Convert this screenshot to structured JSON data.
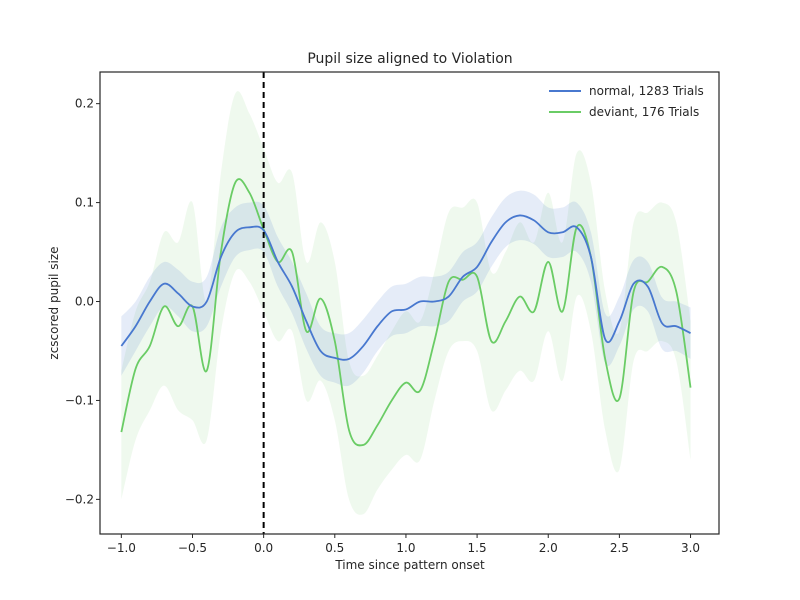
{
  "chart_data": {
    "type": "line",
    "title": "Pupil size aligned to Violation",
    "xlabel": "Time since pattern onset",
    "ylabel": "zcscored pupil size",
    "xlim": [
      -1.15,
      3.2
    ],
    "ylim": [
      -0.235,
      0.232
    ],
    "xticks": [
      -1.0,
      -0.5,
      0.0,
      0.5,
      1.0,
      1.5,
      2.0,
      2.5,
      3.0
    ],
    "xtick_labels": [
      "−1.0",
      "−0.5",
      "0.0",
      "0.5",
      "1.0",
      "1.5",
      "2.0",
      "2.5",
      "3.0"
    ],
    "yticks": [
      -0.2,
      -0.1,
      0.0,
      0.1,
      0.2
    ],
    "ytick_labels": [
      "−0.2",
      "−0.1",
      "0.0",
      "0.1",
      "0.2"
    ],
    "grid": false,
    "legend_position": "top-right",
    "vline": {
      "x": 0.0,
      "style": "dashed",
      "color": "#000000"
    },
    "x": [
      -1.0,
      -0.9,
      -0.8,
      -0.7,
      -0.6,
      -0.5,
      -0.4,
      -0.3,
      -0.2,
      -0.1,
      0.0,
      0.1,
      0.2,
      0.3,
      0.4,
      0.5,
      0.6,
      0.7,
      0.8,
      0.9,
      1.0,
      1.1,
      1.2,
      1.3,
      1.4,
      1.5,
      1.6,
      1.7,
      1.8,
      1.9,
      2.0,
      2.1,
      2.2,
      2.3,
      2.4,
      2.5,
      2.6,
      2.7,
      2.8,
      2.9,
      3.0
    ],
    "series": [
      {
        "name": "normal, 1283 Trials",
        "color": "#4878cf",
        "values": [
          -0.045,
          -0.025,
          0.0,
          0.018,
          0.008,
          -0.005,
          0.0,
          0.045,
          0.07,
          0.075,
          0.072,
          0.04,
          0.015,
          -0.02,
          -0.05,
          -0.057,
          -0.058,
          -0.045,
          -0.025,
          -0.01,
          -0.008,
          0.0,
          0.0,
          0.005,
          0.025,
          0.035,
          0.06,
          0.08,
          0.087,
          0.082,
          0.07,
          0.07,
          0.075,
          0.045,
          -0.038,
          -0.02,
          0.018,
          0.015,
          -0.022,
          -0.025,
          -0.032
        ],
        "ci_lower": [
          -0.075,
          -0.05,
          -0.025,
          -0.005,
          -0.015,
          -0.03,
          -0.025,
          0.015,
          0.045,
          0.052,
          0.05,
          0.015,
          -0.012,
          -0.048,
          -0.075,
          -0.082,
          -0.085,
          -0.072,
          -0.05,
          -0.035,
          -0.032,
          -0.025,
          -0.025,
          -0.02,
          0.0,
          0.01,
          0.035,
          0.055,
          0.062,
          0.058,
          0.045,
          0.045,
          0.05,
          0.02,
          -0.062,
          -0.045,
          -0.008,
          -0.01,
          -0.048,
          -0.05,
          -0.058
        ],
        "ci_upper": [
          -0.015,
          0.0,
          0.025,
          0.04,
          0.032,
          0.02,
          0.025,
          0.075,
          0.095,
          0.1,
          0.097,
          0.065,
          0.04,
          0.008,
          -0.025,
          -0.032,
          -0.032,
          -0.018,
          0.0,
          0.015,
          0.018,
          0.025,
          0.025,
          0.03,
          0.05,
          0.06,
          0.085,
          0.105,
          0.112,
          0.108,
          0.095,
          0.095,
          0.1,
          0.07,
          -0.012,
          0.005,
          0.042,
          0.04,
          0.004,
          0.0,
          -0.006
        ]
      },
      {
        "name": "deviant, 176 Trials",
        "color": "#6acc65",
        "values": [
          -0.132,
          -0.068,
          -0.045,
          -0.005,
          -0.025,
          -0.005,
          -0.07,
          0.05,
          0.12,
          0.11,
          0.073,
          0.04,
          0.05,
          -0.03,
          0.003,
          -0.04,
          -0.13,
          -0.145,
          -0.125,
          -0.1,
          -0.082,
          -0.09,
          -0.04,
          0.02,
          0.022,
          0.025,
          -0.04,
          -0.02,
          0.005,
          -0.01,
          0.04,
          -0.01,
          0.075,
          0.045,
          -0.058,
          -0.098,
          0.01,
          0.02,
          0.035,
          0.01,
          -0.087
        ],
        "ci_lower": [
          -0.2,
          -0.14,
          -0.11,
          -0.085,
          -0.11,
          -0.12,
          -0.14,
          -0.03,
          0.03,
          0.02,
          -0.01,
          -0.04,
          -0.03,
          -0.1,
          -0.08,
          -0.12,
          -0.2,
          -0.215,
          -0.19,
          -0.17,
          -0.155,
          -0.16,
          -0.1,
          -0.05,
          -0.04,
          -0.05,
          -0.11,
          -0.09,
          -0.07,
          -0.08,
          -0.03,
          -0.08,
          0.005,
          -0.03,
          -0.13,
          -0.17,
          -0.06,
          -0.05,
          -0.04,
          -0.06,
          -0.16
        ],
        "ci_upper": [
          -0.07,
          -0.01,
          0.02,
          0.07,
          0.06,
          0.1,
          0.0,
          0.13,
          0.21,
          0.19,
          0.155,
          0.12,
          0.13,
          0.04,
          0.08,
          0.04,
          -0.06,
          -0.075,
          -0.055,
          -0.03,
          -0.01,
          -0.02,
          0.03,
          0.09,
          0.095,
          0.1,
          0.03,
          0.05,
          0.08,
          0.06,
          0.11,
          0.06,
          0.15,
          0.12,
          0.01,
          -0.03,
          0.08,
          0.09,
          0.1,
          0.08,
          -0.02
        ]
      }
    ]
  }
}
